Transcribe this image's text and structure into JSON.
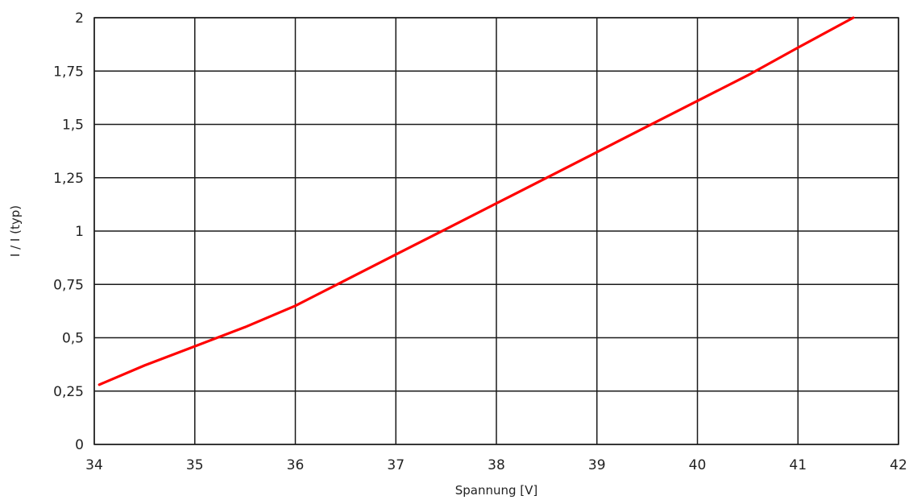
{
  "chart_data": {
    "type": "line",
    "xlabel": "Spannung [V]",
    "ylabel": "I / I (typ)",
    "xlim": [
      34,
      42
    ],
    "ylim": [
      0,
      2
    ],
    "xticks": [
      34,
      35,
      36,
      37,
      38,
      39,
      40,
      41,
      42
    ],
    "xtick_labels": [
      "34",
      "35",
      "36",
      "37",
      "38",
      "39",
      "40",
      "41",
      "42"
    ],
    "yticks": [
      0,
      0.25,
      0.5,
      0.75,
      1,
      1.25,
      1.5,
      1.75,
      2
    ],
    "ytick_labels": [
      "0",
      "0,25",
      "0,5",
      "0,75",
      "1",
      "1,25",
      "1,5",
      "1,75",
      "2"
    ],
    "grid": true,
    "series": [
      {
        "color": "#ff0000",
        "x": [
          34.05,
          34.5,
          35.0,
          35.5,
          36.0,
          36.5,
          37.0,
          37.5,
          38.0,
          38.5,
          39.0,
          39.5,
          40.0,
          40.5,
          41.0,
          41.55
        ],
        "y": [
          0.28,
          0.37,
          0.46,
          0.55,
          0.65,
          0.77,
          0.89,
          1.01,
          1.13,
          1.25,
          1.37,
          1.49,
          1.61,
          1.73,
          1.86,
          2.0
        ]
      }
    ]
  }
}
